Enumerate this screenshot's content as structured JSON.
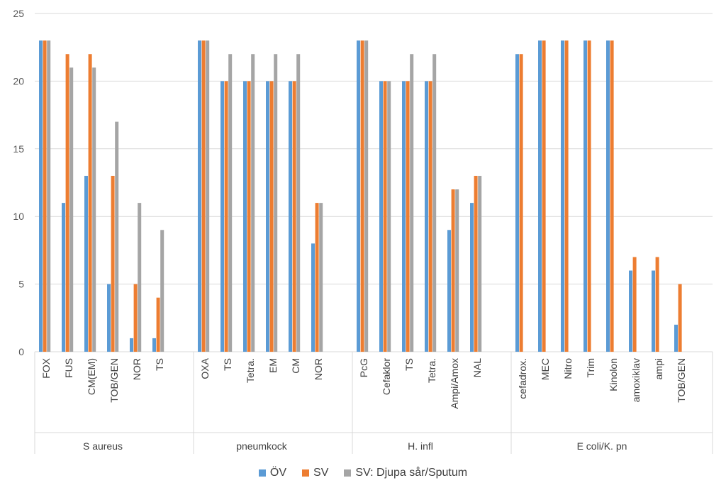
{
  "chart_data": {
    "type": "bar",
    "ylim": [
      0,
      25
    ],
    "yticks": [
      0,
      5,
      10,
      15,
      20,
      25
    ],
    "grid": true,
    "legend_position": "bottom",
    "groups": [
      {
        "name": "S aureus",
        "categories": [
          "FOX",
          "FUS",
          "CM(EM)",
          "TOB/GEN",
          "NOR",
          "TS"
        ]
      },
      {
        "name": "pneumkock",
        "categories": [
          "OXA",
          "TS",
          "Tetra.",
          "EM",
          "CM",
          "NOR"
        ]
      },
      {
        "name": "H. infl",
        "categories": [
          "PcG",
          "Cefaklor",
          "TS",
          "Tetra.",
          "Ampi/Amox",
          "NAL"
        ]
      },
      {
        "name": "E coli/K. pn",
        "categories": [
          "cefadrox.",
          "MEC",
          "Nitro",
          "Trim",
          "Kinolon",
          "amoxiklav",
          "ampi",
          "TOB/GEN"
        ]
      }
    ],
    "series": [
      {
        "name": "ÖV",
        "color": "#5B9BD5",
        "values": [
          23,
          11,
          13,
          5,
          1,
          1,
          23,
          20,
          20,
          20,
          20,
          8,
          23,
          20,
          20,
          20,
          9,
          11,
          22,
          23,
          23,
          23,
          23,
          6,
          6,
          2
        ]
      },
      {
        "name": "SV",
        "color": "#ED7D31",
        "values": [
          23,
          22,
          22,
          13,
          5,
          4,
          23,
          20,
          20,
          20,
          20,
          11,
          23,
          20,
          20,
          20,
          12,
          13,
          22,
          23,
          23,
          23,
          23,
          7,
          7,
          5
        ]
      },
      {
        "name": "SV: Djupa sår/Sputum",
        "color": "#A5A5A5",
        "values": [
          23,
          21,
          21,
          17,
          11,
          9,
          23,
          22,
          22,
          22,
          22,
          11,
          23,
          20,
          22,
          22,
          12,
          13,
          null,
          null,
          null,
          null,
          null,
          null,
          null,
          null
        ]
      }
    ]
  }
}
